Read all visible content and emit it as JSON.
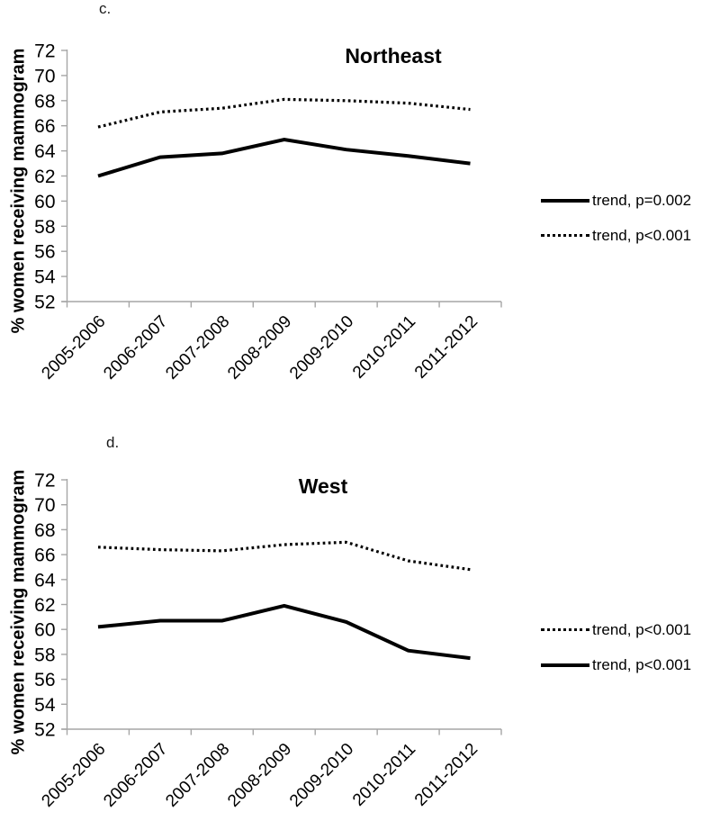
{
  "figure": {
    "background": "#ffffff",
    "colors": {
      "line": "#000000",
      "axis": "#a6a6a6",
      "text": "#000000"
    }
  },
  "chart_data": [
    {
      "type": "line",
      "panel_label": "c.",
      "title": "Northeast",
      "ylabel": "% women receiving mammogram",
      "xlabel": "",
      "categories": [
        "2005-2006",
        "2006-2007",
        "2007-2008",
        "2008-2009",
        "2009-2010",
        "2010-2011",
        "2011-2012"
      ],
      "ylim": [
        52,
        72
      ],
      "yticks": [
        52,
        54,
        56,
        58,
        60,
        62,
        64,
        66,
        68,
        70,
        72
      ],
      "grid": false,
      "legend_position": "right",
      "series": [
        {
          "name": "trend, p=0.002",
          "style": "solid",
          "values": [
            62.0,
            63.5,
            63.8,
            64.9,
            64.1,
            63.6,
            63.0
          ]
        },
        {
          "name": "trend, p<0.001",
          "style": "dotted",
          "values": [
            65.9,
            67.1,
            67.4,
            68.1,
            68.0,
            67.8,
            67.3
          ]
        }
      ],
      "legend_order": [
        0,
        1
      ]
    },
    {
      "type": "line",
      "panel_label": "d.",
      "title": "West",
      "ylabel": "% women receiving mammogram",
      "xlabel": "",
      "categories": [
        "2005-2006",
        "2006-2007",
        "2007-2008",
        "2008-2009",
        "2009-2010",
        "2010-2011",
        "2011-2012"
      ],
      "ylim": [
        52,
        72
      ],
      "yticks": [
        52,
        54,
        56,
        58,
        60,
        62,
        64,
        66,
        68,
        70,
        72
      ],
      "grid": false,
      "legend_position": "right",
      "series": [
        {
          "name": "trend, p<0.001",
          "style": "dotted",
          "values": [
            66.6,
            66.4,
            66.3,
            66.8,
            67.0,
            65.5,
            64.8
          ]
        },
        {
          "name": "trend, p<0.001",
          "style": "solid",
          "values": [
            60.2,
            60.7,
            60.7,
            61.9,
            60.6,
            58.3,
            57.7
          ]
        }
      ],
      "legend_order": [
        0,
        1
      ]
    }
  ]
}
